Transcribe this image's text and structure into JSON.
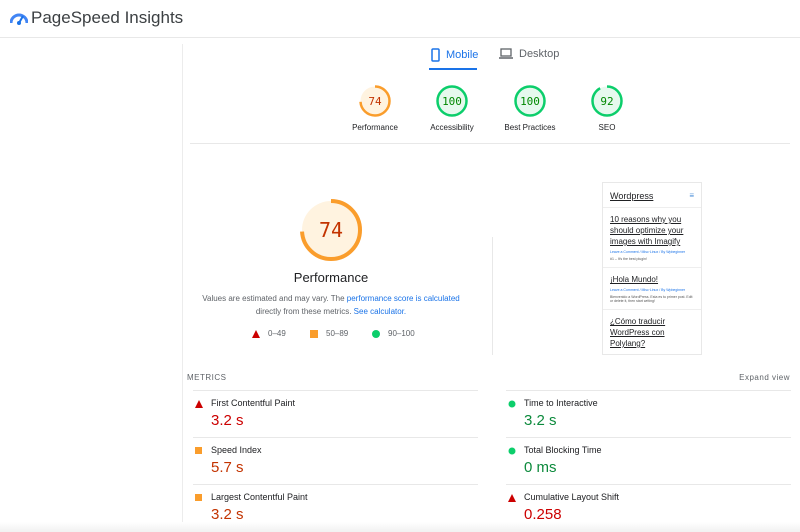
{
  "app": {
    "title": "PageSpeed Insights"
  },
  "tabs": [
    {
      "label": "Mobile",
      "active": true
    },
    {
      "label": "Desktop",
      "active": false
    }
  ],
  "scores": [
    {
      "label": "Performance",
      "value": 74,
      "color": "#fa9d2c"
    },
    {
      "label": "Accessibility",
      "value": 100,
      "color": "#0cce6b"
    },
    {
      "label": "Best Practices",
      "value": 100,
      "color": "#0cce6b"
    },
    {
      "label": "SEO",
      "value": 92,
      "color": "#0cce6b"
    }
  ],
  "main_score": {
    "value": 74,
    "label": "Performance",
    "color": "#fa9d2c"
  },
  "description": {
    "text1": "Values are estimated and may vary. The ",
    "link1": "performance score is calculated",
    "text2": " directly from these metrics. ",
    "link2": "See calculator."
  },
  "legend": [
    {
      "range": "0–49",
      "icon": "triangle-red"
    },
    {
      "range": "50–89",
      "icon": "square-orange"
    },
    {
      "range": "90–100",
      "icon": "circle-green"
    }
  ],
  "screenshot": {
    "site": "Wordpress",
    "posts": [
      {
        "title": "10 reasons why you should optimize your images with Imagify",
        "meta": "Leave a Comment / Misc·Linux / By Wpbeginner",
        "excerpt": "#1 – It's the best plugin!"
      },
      {
        "title": "¡Hola Mundo!",
        "meta": "Leave a Comment / Misc·Linux / By Wpbeginner",
        "excerpt": "Bienvenido a WordPress. Esta es tu primer post. Edit or delete it, then start writing!"
      },
      {
        "title": "¿Cómo traducir WordPress con Polylang?",
        "meta": "",
        "excerpt": ""
      }
    ]
  },
  "metrics": {
    "heading": "METRICS",
    "expand": "Expand view",
    "items": [
      {
        "name": "First Contentful Paint",
        "value": "3.2 s",
        "status": "red"
      },
      {
        "name": "Time to Interactive",
        "value": "3.2 s",
        "status": "green"
      },
      {
        "name": "Speed Index",
        "value": "5.7 s",
        "status": "orange"
      },
      {
        "name": "Total Blocking Time",
        "value": "0 ms",
        "status": "green"
      },
      {
        "name": "Largest Contentful Paint",
        "value": "3.2 s",
        "status": "orange"
      },
      {
        "name": "Cumulative Layout Shift",
        "value": "0.258",
        "status": "red"
      }
    ]
  }
}
